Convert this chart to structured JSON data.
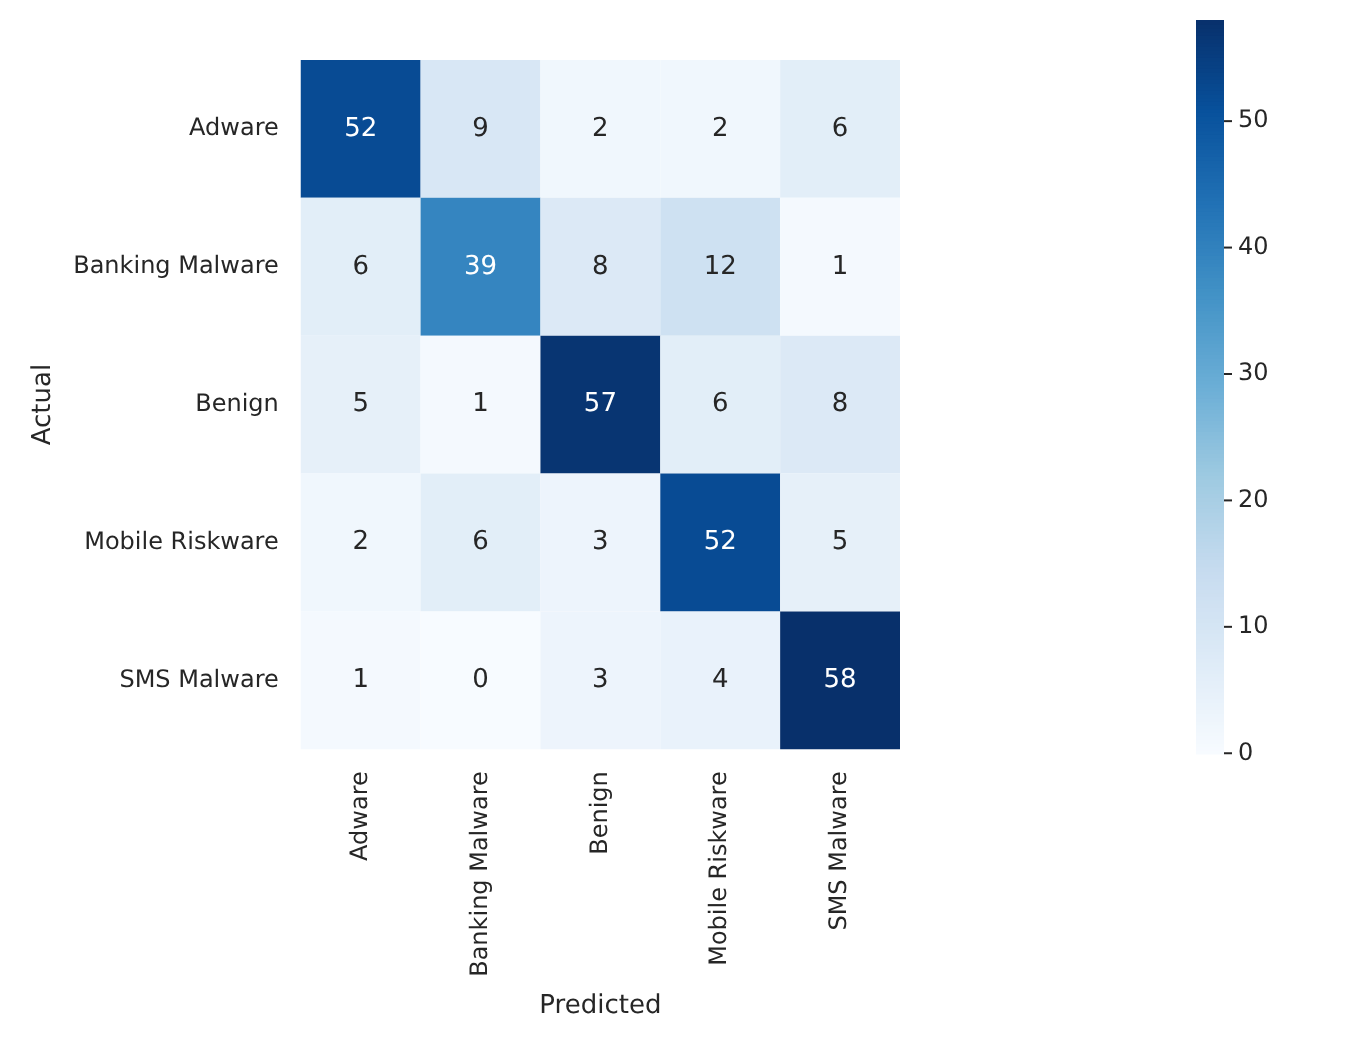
{
  "chart_data": {
    "type": "heatmap",
    "xlabel": "Predicted",
    "ylabel": "Actual",
    "categories": [
      "Adware",
      "Banking Malware",
      "Benign",
      "Mobile Riskware",
      "SMS Malware"
    ],
    "y_categories": [
      "Adware",
      "Banking Malware",
      "Benign",
      "Mobile Riskware",
      "SMS Malware"
    ],
    "cells": [
      [
        52,
        9,
        2,
        2,
        6
      ],
      [
        6,
        39,
        8,
        12,
        1
      ],
      [
        5,
        1,
        57,
        6,
        8
      ],
      [
        2,
        6,
        3,
        52,
        5
      ],
      [
        1,
        0,
        3,
        4,
        58
      ]
    ],
    "clim": [
      0,
      58
    ],
    "cticks": [
      0,
      10,
      20,
      30,
      40,
      50
    ],
    "data_labels": true
  }
}
